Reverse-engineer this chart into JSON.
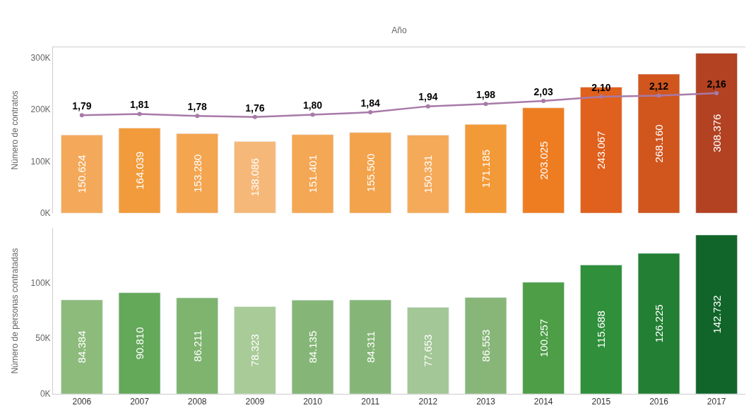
{
  "chart_data": [
    {
      "type": "bar",
      "xlabel": "Año",
      "ylabel": "Número de contratos",
      "categories": [
        "2006",
        "2007",
        "2008",
        "2009",
        "2010",
        "2011",
        "2012",
        "2013",
        "2014",
        "2015",
        "2016",
        "2017"
      ],
      "ylim": [
        0,
        320000
      ],
      "yticks": [
        {
          "value": 0,
          "label": "0K"
        },
        {
          "value": 100000,
          "label": "100K"
        },
        {
          "value": 200000,
          "label": "200K"
        },
        {
          "value": 300000,
          "label": "300K"
        }
      ],
      "y2lim": [
        0.15,
        2.93
      ],
      "tick_labels": "y",
      "series": [
        {
          "colors": [
            "#f4a95a",
            "#f29b3c",
            "#f4a550",
            "#f6b878",
            "#f4a754",
            "#f3a34c",
            "#f5aa5a",
            "#f39a38",
            "#ee7d22",
            "#e0601d",
            "#d0561e",
            "#b24222"
          ],
          "values": [
            150624,
            164039,
            153280,
            138086,
            151401,
            155500,
            150331,
            171185,
            203025,
            243067,
            268160,
            308376
          ],
          "value_labels": [
            "150.624",
            "164.039",
            "153.280",
            "138.086",
            "151.401",
            "155.500",
            "150.331",
            "171.185",
            "203.025",
            "243.067",
            "268.160",
            "308.376"
          ]
        },
        {
          "type": "line",
          "axis": "y2",
          "color": "#a77aa8",
          "marker": "circle",
          "values": [
            1.79,
            1.81,
            1.78,
            1.76,
            1.8,
            1.84,
            1.94,
            1.98,
            2.03,
            2.1,
            2.12,
            2.16
          ],
          "value_labels": [
            "1,79",
            "1,81",
            "1,78",
            "1,76",
            "1,80",
            "1,84",
            "1,94",
            "1,98",
            "2,03",
            "2,10",
            "2,12",
            "2,16"
          ]
        }
      ]
    },
    {
      "type": "bar",
      "ylabel": "Número de personas contratadas",
      "categories": [
        "2006",
        "2007",
        "2008",
        "2009",
        "2010",
        "2011",
        "2012",
        "2013",
        "2014",
        "2015",
        "2016",
        "2017"
      ],
      "ylim": [
        0,
        149000
      ],
      "yticks": [
        {
          "value": 0,
          "label": "0K"
        },
        {
          "value": 50000,
          "label": "50K"
        },
        {
          "value": 100000,
          "label": "100K"
        }
      ],
      "series": [
        {
          "colors": [
            "#8dbb7b",
            "#64a85a",
            "#7fb46f",
            "#a8cb98",
            "#85b677",
            "#86b677",
            "#a3c796",
            "#88b679",
            "#4d9e47",
            "#2f8f3a",
            "#237f33",
            "#11652a"
          ],
          "values": [
            84384,
            90810,
            86211,
            78323,
            84135,
            84311,
            77653,
            86553,
            100257,
            115688,
            126225,
            142732
          ],
          "value_labels": [
            "84.384",
            "90.810",
            "86.211",
            "78.323",
            "84.135",
            "84.311",
            "77.653",
            "86.553",
            "100.257",
            "115.688",
            "126.225",
            "142.732"
          ]
        }
      ]
    }
  ]
}
